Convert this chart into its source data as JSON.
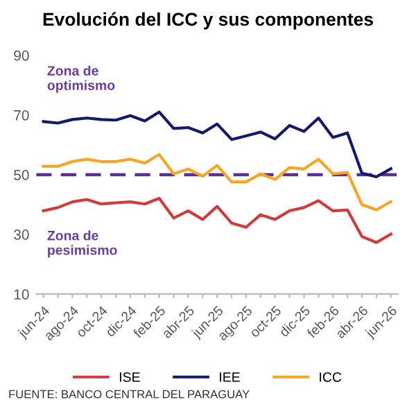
{
  "chart_data": {
    "type": "line",
    "title": "Evolución del ICC y sus componentes",
    "categories": [
      "jun-24",
      null,
      "ago-24",
      null,
      "oct-24",
      null,
      "dic-24",
      null,
      "feb-25",
      null,
      "abr-25",
      null,
      "jun-25",
      null,
      "ago-25",
      null,
      "oct-25",
      null,
      "dic-25",
      null,
      "feb-26",
      null,
      "abr-26",
      null,
      "jun-26"
    ],
    "series": [
      {
        "name": "ISE",
        "color": "#d13b3b",
        "values": [
          37.9,
          39,
          40.9,
          41.7,
          40.2,
          40.6,
          40.9,
          40.2,
          42.1,
          35.5,
          37.9,
          35,
          39.4,
          33.8,
          32.4,
          36.6,
          35,
          37.9,
          39,
          41.3,
          37.9,
          38.2,
          29.3,
          27.3,
          30.1
        ]
      },
      {
        "name": "IEE",
        "color": "#141a6b",
        "values": [
          67.8,
          67.3,
          68.5,
          69,
          68.5,
          68.3,
          69.8,
          68,
          71,
          65.5,
          65.8,
          64,
          67,
          61.8,
          63,
          64.3,
          62,
          66.5,
          64.5,
          69,
          62.5,
          64,
          50.5,
          49.3,
          52
        ]
      },
      {
        "name": "ICC",
        "color": "#f5a623",
        "values": [
          52.8,
          52.8,
          54.4,
          55.2,
          54.4,
          54.4,
          55.2,
          53.9,
          56.8,
          50.3,
          51.9,
          49.5,
          53.1,
          47.6,
          47.6,
          50.3,
          48.4,
          52.4,
          51.9,
          55.2,
          50.3,
          50.8,
          40,
          38.2,
          41
        ]
      }
    ],
    "ylim": [
      10,
      90
    ],
    "yticks": [
      10,
      30,
      50,
      70,
      90
    ],
    "grid": false,
    "legend": "bottom",
    "marker": "none",
    "line_style": "solid",
    "ref_lines": [
      {
        "axis": "y",
        "value": 50,
        "color": "#5b2e91",
        "line_style": "dashed"
      }
    ],
    "annotations": [
      "Zona de optimismo",
      "Zona de pesimismo",
      "FUENTE: BANCO CENTRAL DEL PARAGUAY"
    ]
  }
}
